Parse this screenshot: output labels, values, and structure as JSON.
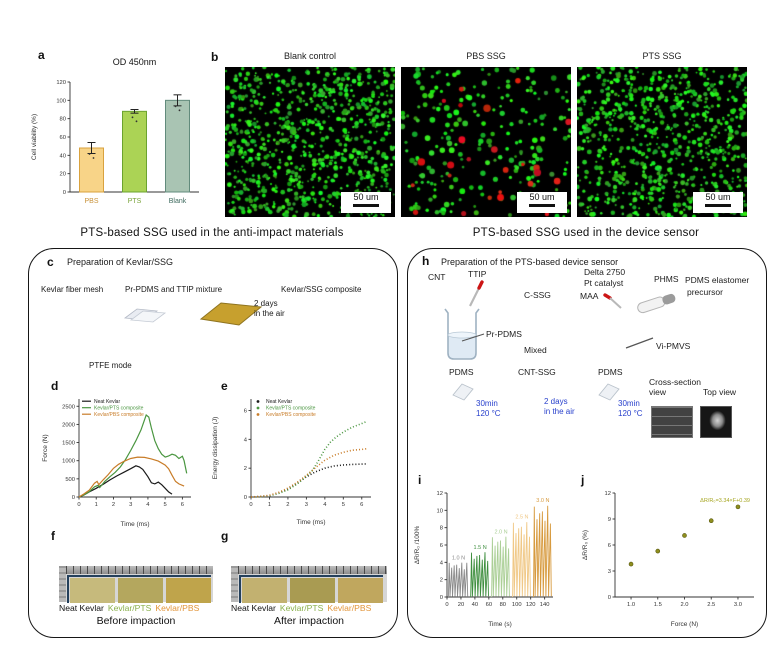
{
  "sections": {
    "left": "PTS-based SSG used in the anti-impact materials",
    "right": "PTS-based SSG used in the device sensor"
  },
  "panel_a": {
    "label": "a"
  },
  "panel_b": {
    "label": "b",
    "images": [
      {
        "title": "Blank control",
        "scale_label": "50 um",
        "dots": {
          "green": 820,
          "red": 0
        }
      },
      {
        "title": "PBS SSG",
        "scale_label": "50 um",
        "dots": {
          "green": 230,
          "red": 26
        }
      },
      {
        "title": "PTS SSG",
        "scale_label": "50 um",
        "dots": {
          "green": 760,
          "red": 0
        }
      }
    ]
  },
  "panel_c": {
    "label": "c",
    "title": "Preparation of Kevlar/SSG",
    "mesh": "Kevlar fiber mesh",
    "mixture": "Pr-PDMS and TTIP mixture",
    "composite": "Kevlar/SSG composite",
    "days": "2 days",
    "air": "in the air",
    "ptfe": "PTFE mode"
  },
  "panel_d": {
    "label": "d"
  },
  "panel_e": {
    "label": "e"
  },
  "panel_f": {
    "label": "f",
    "samples": [
      {
        "name": "Neat Kevlar",
        "color": "#111111"
      },
      {
        "name": "Kevlar/PTS",
        "color": "#8ab04c"
      },
      {
        "name": "Kevlar/PBS",
        "color": "#e2953a"
      }
    ],
    "caption": "Before impaction"
  },
  "panel_g": {
    "label": "g",
    "samples": [
      {
        "name": "Neat Kevlar",
        "color": "#111111"
      },
      {
        "name": "Kevlar/PTS",
        "color": "#8ab04c"
      },
      {
        "name": "Kevlar/PBS",
        "color": "#e2953a"
      }
    ],
    "caption": "After impaction"
  },
  "panel_h": {
    "label": "h",
    "title": "Preparation of the PTS-based device sensor",
    "cnt": "CNT",
    "ttip": "TTIP",
    "cssg": "C-SSG",
    "delta": "Delta 2750",
    "pt": "Pt catalyst",
    "maa": "MAA",
    "phms": "PHMS",
    "elastomer": "PDMS elastomer",
    "precursor": "precursor",
    "prpdms": "Pr-PDMS",
    "mixed": "Mixed",
    "vipmvs": "Vi-PMVS",
    "pdms_left": "PDMS",
    "cntssg": "CNT-SSG",
    "pdms_right": "PDMS",
    "cure1_l1": "30min",
    "cure1_l2": "120 °C",
    "air_l1": "2 days",
    "air_l2": "in the air",
    "cure2_l1": "30min",
    "cure2_l2": "120 °C",
    "cross_l1": "Cross-section",
    "cross_l2": "view",
    "top_view": "Top view",
    "accent_blue": "#2840cc"
  },
  "panel_i": {
    "label": "i"
  },
  "panel_j": {
    "label": "j"
  },
  "chart_data": [
    {
      "id": "a",
      "type": "bar",
      "title": "OD 450nm",
      "ylabel": "Cell viability (%)",
      "ylim": [
        0,
        120
      ],
      "yticks": [
        0,
        20,
        40,
        60,
        80,
        100,
        120
      ],
      "categories": [
        "PBS",
        "PTS",
        "Blank"
      ],
      "values": [
        48,
        88,
        100
      ],
      "errors": [
        6,
        2,
        6
      ],
      "bar_fill": [
        "#f8d488",
        "#abd355",
        "#a9c4b3"
      ],
      "bar_stroke": [
        "#d9a23e",
        "#6ba32f",
        "#628b7c"
      ],
      "cat_colors": [
        "#c8923a",
        "#79a33a",
        "#3f6b5f"
      ]
    },
    {
      "id": "d",
      "type": "line",
      "xlabel": "Time (ms)",
      "ylabel": "Force (N)",
      "xlim": [
        0,
        6.5
      ],
      "ylim": [
        0,
        2700
      ],
      "xticks": [
        0,
        1,
        2,
        3,
        4,
        5,
        6
      ],
      "yticks": [
        0,
        500,
        1000,
        1500,
        2000,
        2500
      ],
      "legend_marker": "line",
      "series": [
        {
          "name": "Neat Kevlar",
          "color": "#1a1a1a",
          "points": [
            [
              0,
              0
            ],
            [
              0.3,
              60
            ],
            [
              0.6,
              140
            ],
            [
              1,
              240
            ],
            [
              1.4,
              350
            ],
            [
              1.8,
              470
            ],
            [
              2.2,
              580
            ],
            [
              2.6,
              680
            ],
            [
              3,
              780
            ],
            [
              3.3,
              860
            ],
            [
              3.5,
              830
            ],
            [
              3.7,
              760
            ],
            [
              4,
              560
            ],
            [
              4.2,
              390
            ],
            [
              4.4,
              360
            ],
            [
              4.6,
              410
            ],
            [
              4.8,
              340
            ],
            [
              5,
              240
            ],
            [
              5.2,
              140
            ],
            [
              5.4,
              80
            ]
          ]
        },
        {
          "name": "Kevlar/PTS composite",
          "color": "#4a9640",
          "points": [
            [
              0,
              0
            ],
            [
              0.3,
              60
            ],
            [
              0.6,
              150
            ],
            [
              0.9,
              280
            ],
            [
              1.1,
              320
            ],
            [
              1.2,
              260
            ],
            [
              1.5,
              430
            ],
            [
              1.8,
              560
            ],
            [
              2.1,
              680
            ],
            [
              2.4,
              830
            ],
            [
              2.7,
              1030
            ],
            [
              3,
              1280
            ],
            [
              3.3,
              1550
            ],
            [
              3.6,
              1850
            ],
            [
              3.9,
              2260
            ],
            [
              4.05,
              2200
            ],
            [
              4.2,
              1900
            ],
            [
              4.4,
              1550
            ],
            [
              4.6,
              1330
            ],
            [
              4.8,
              1180
            ],
            [
              5,
              1100
            ],
            [
              5.2,
              1130
            ],
            [
              5.4,
              1180
            ],
            [
              5.6,
              1150
            ],
            [
              5.8,
              1060
            ],
            [
              6,
              1120
            ],
            [
              6.1,
              1000
            ],
            [
              6.25,
              650
            ]
          ]
        },
        {
          "name": "Kevlar/PBS composite",
          "color": "#c87c28",
          "points": [
            [
              0,
              0
            ],
            [
              0.3,
              90
            ],
            [
              0.6,
              190
            ],
            [
              0.9,
              380
            ],
            [
              1.05,
              430
            ],
            [
              1.15,
              340
            ],
            [
              1.4,
              470
            ],
            [
              1.7,
              620
            ],
            [
              2,
              790
            ],
            [
              2.3,
              900
            ],
            [
              2.6,
              980
            ],
            [
              3,
              1060
            ],
            [
              3.4,
              1100
            ],
            [
              3.8,
              1090
            ],
            [
              4.2,
              1050
            ],
            [
              4.6,
              990
            ],
            [
              5,
              880
            ],
            [
              5.2,
              780
            ],
            [
              5.4,
              600
            ],
            [
              5.6,
              430
            ],
            [
              5.8,
              360
            ],
            [
              6.1,
              300
            ]
          ]
        }
      ]
    },
    {
      "id": "e",
      "type": "line",
      "dotted": true,
      "xlabel": "Time (ms)",
      "ylabel": "Energy dissipation (J)",
      "xlim": [
        0,
        6.5
      ],
      "ylim": [
        0,
        6.8
      ],
      "xticks": [
        0,
        1,
        2,
        3,
        4,
        5,
        6
      ],
      "yticks": [
        0,
        2,
        4,
        6
      ],
      "legend_marker": "dot",
      "series": [
        {
          "name": "Neat Kevlar",
          "color": "#1a1a1a",
          "points": [
            [
              0,
              0
            ],
            [
              0.5,
              0.03
            ],
            [
              1,
              0.1
            ],
            [
              1.5,
              0.28
            ],
            [
              2,
              0.55
            ],
            [
              2.5,
              0.95
            ],
            [
              3,
              1.4
            ],
            [
              3.5,
              1.75
            ],
            [
              4,
              2
            ],
            [
              4.5,
              2.15
            ],
            [
              5,
              2.22
            ],
            [
              5.5,
              2.26
            ],
            [
              6,
              2.28
            ],
            [
              6.3,
              2.3
            ]
          ]
        },
        {
          "name": "Kevlar/PTS composite",
          "color": "#4a9640",
          "points": [
            [
              0,
              0
            ],
            [
              0.5,
              0.02
            ],
            [
              1,
              0.08
            ],
            [
              1.5,
              0.25
            ],
            [
              2,
              0.5
            ],
            [
              2.5,
              0.9
            ],
            [
              3,
              1.45
            ],
            [
              3.3,
              1.8
            ],
            [
              3.6,
              2.4
            ],
            [
              4,
              3.3
            ],
            [
              4.3,
              3.8
            ],
            [
              4.6,
              4.15
            ],
            [
              5,
              4.5
            ],
            [
              5.5,
              4.85
            ],
            [
              6,
              5.1
            ],
            [
              6.3,
              5.25
            ]
          ]
        },
        {
          "name": "Kevlar/PBS composite",
          "color": "#c87c28",
          "points": [
            [
              0,
              0
            ],
            [
              0.5,
              0.04
            ],
            [
              1,
              0.12
            ],
            [
              1.5,
              0.32
            ],
            [
              2,
              0.62
            ],
            [
              2.5,
              1.02
            ],
            [
              3,
              1.5
            ],
            [
              3.5,
              2.05
            ],
            [
              4,
              2.55
            ],
            [
              4.5,
              2.9
            ],
            [
              5,
              3.1
            ],
            [
              5.5,
              3.25
            ],
            [
              6,
              3.3
            ],
            [
              6.3,
              3.35
            ]
          ]
        }
      ]
    },
    {
      "id": "i",
      "type": "spikes",
      "xlabel": "Time (s)",
      "ylabel": "ΔR/R₀ /100%",
      "xlim": [
        0,
        152
      ],
      "ylim": [
        0,
        12
      ],
      "xticks": [
        0,
        20,
        40,
        60,
        80,
        100,
        120,
        140
      ],
      "yticks": [
        0,
        2,
        4,
        6,
        8,
        10,
        12
      ],
      "groups": [
        {
          "label": "1.0 N",
          "color": "#8a8a8a",
          "amp": 4.0,
          "t0": 2,
          "t1": 31,
          "n": 8
        },
        {
          "label": "1.5 N",
          "color": "#3f8f3f",
          "amp": 5.2,
          "t0": 34,
          "t1": 61,
          "n": 7
        },
        {
          "label": "2.0 N",
          "color": "#abcf96",
          "amp": 7.0,
          "t0": 64,
          "t1": 91,
          "n": 7
        },
        {
          "label": "2.5 N",
          "color": "#f0c886",
          "amp": 8.7,
          "t0": 94,
          "t1": 121,
          "n": 7
        },
        {
          "label": "3.0 N",
          "color": "#d79a3e",
          "amp": 10.6,
          "t0": 124,
          "t1": 151,
          "n": 7
        }
      ]
    },
    {
      "id": "j",
      "type": "scatter",
      "xlabel": "Force (N)",
      "ylabel": "ΔR/R₀ (%)",
      "xlim": [
        0.7,
        3.3
      ],
      "ylim": [
        0,
        12
      ],
      "xdec": 1,
      "xticks": [
        1,
        1.5,
        2,
        2.5,
        3
      ],
      "yticks": [
        0,
        3,
        6,
        9,
        12
      ],
      "point_color": "#8f8f1e",
      "points": [
        [
          1,
          3.8
        ],
        [
          1.5,
          5.3
        ],
        [
          2,
          7.1
        ],
        [
          2.5,
          8.8
        ],
        [
          3,
          10.4
        ]
      ],
      "annotation": "ΔR/R₀=3.34×F+0.39",
      "annotation_color": "#a5a51f"
    }
  ]
}
